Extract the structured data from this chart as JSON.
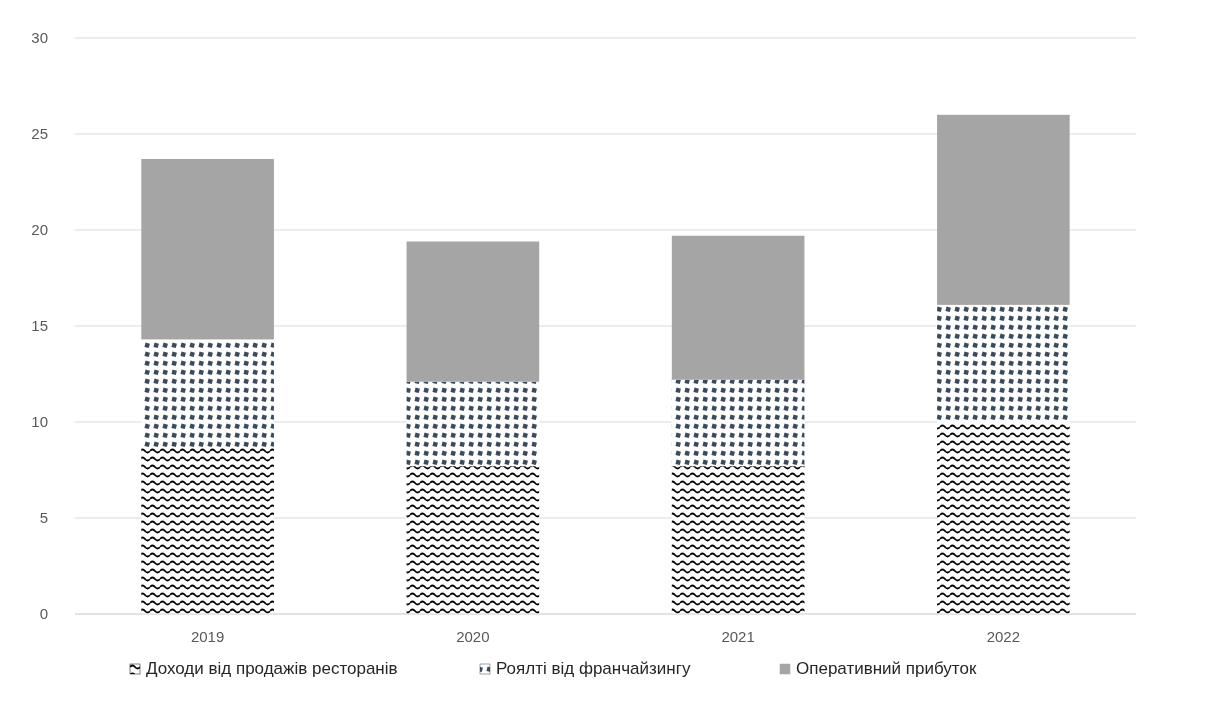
{
  "chart_data": {
    "type": "bar",
    "stacked": true,
    "categories": [
      "2019",
      "2020",
      "2021",
      "2022"
    ],
    "series": [
      {
        "name": "Доходи від продажів ресторанів",
        "color": "#000000",
        "values": [
          8.7,
          7.7,
          7.7,
          10.0
        ]
      },
      {
        "name": "Роялті від франчайзингу",
        "color": "#3b4a5c",
        "values": [
          5.6,
          4.4,
          4.5,
          6.1
        ]
      },
      {
        "name": "Оперативний прибуток",
        "color": "#a5a5a5",
        "values": [
          9.4,
          7.3,
          7.5,
          9.9
        ]
      }
    ],
    "ylim": [
      0,
      30
    ],
    "yticks": [
      0,
      5,
      10,
      15,
      20,
      25,
      30
    ],
    "grid": "y",
    "legend": "bottom"
  }
}
